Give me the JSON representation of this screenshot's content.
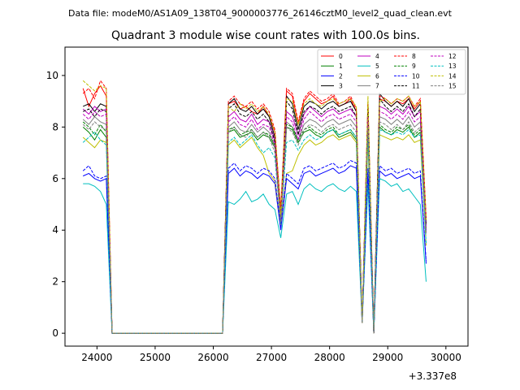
{
  "chart_data": {
    "type": "line",
    "suptitle": "Data file: modeM0/AS1A09_138T04_9000003776_26146cztM0_level2_quad_clean.evt",
    "title": "Quadrant 3 module wise count rates with 100.0s bins.",
    "xlabel": "",
    "ylabel": "",
    "offset_label": "+3.337e8",
    "xlim": [
      23450,
      30380
    ],
    "ylim": [
      -0.5,
      11.1
    ],
    "x_ticks": [
      24000,
      25000,
      26000,
      27000,
      28000,
      29000,
      30000
    ],
    "x_tick_labels": [
      "24000",
      "25000",
      "26000",
      "27000",
      "28000",
      "29000",
      "30000"
    ],
    "y_ticks": [
      0,
      2,
      4,
      6,
      8,
      10
    ],
    "y_tick_labels": [
      "0",
      "2",
      "4",
      "6",
      "8",
      "10"
    ],
    "x": [
      23760,
      23860,
      23960,
      24060,
      24160,
      24260,
      24360,
      24460,
      24560,
      24660,
      24760,
      24860,
      24960,
      25060,
      25160,
      25260,
      25360,
      25460,
      25560,
      25660,
      25760,
      25860,
      25960,
      26060,
      26160,
      26260,
      26360,
      26460,
      26560,
      26660,
      26760,
      26860,
      26960,
      27060,
      27160,
      27260,
      27360,
      27460,
      27560,
      27660,
      27760,
      27860,
      27960,
      28060,
      28160,
      28260,
      28360,
      28460,
      28560,
      28660,
      28760,
      28860,
      28960,
      29060,
      29160,
      29260,
      29360,
      29460,
      29560,
      29660,
      29760,
      29860,
      29960,
      30060
    ],
    "legend": {
      "location": "upper right",
      "columns": 4,
      "entries": [
        "0",
        "1",
        "2",
        "3",
        "4",
        "5",
        "6",
        "7",
        "8",
        "9",
        "10",
        "11",
        "12",
        "13",
        "14",
        "15"
      ]
    },
    "series": [
      {
        "name": "0",
        "color": "#ff0000",
        "dash": "solid",
        "high": [
          9.5,
          8.8,
          9.3,
          9.6,
          9.2
        ],
        "mid": [
          8.9,
          9.0,
          8.7,
          8.8,
          8.6,
          8.5,
          8.8,
          8.4,
          7.8,
          4.8,
          9.4,
          9.2,
          8.1,
          9.0,
          9.3,
          9.1,
          8.9,
          9.0,
          9.2,
          8.8,
          8.9,
          9.1,
          8.6
        ],
        "late": [
          8.9,
          9.1,
          9.0,
          8.8,
          9.0,
          8.9,
          9.1,
          8.7,
          9.0,
          4.4
        ]
      },
      {
        "name": "1",
        "color": "#008000",
        "dash": "solid",
        "high": [
          8.0,
          7.8,
          7.5,
          7.9,
          7.6
        ],
        "mid": [
          7.8,
          7.9,
          7.6,
          7.7,
          7.8,
          7.5,
          7.7,
          7.6,
          7.2,
          4.3,
          8.0,
          7.9,
          7.4,
          7.8,
          7.9,
          7.7,
          7.6,
          7.8,
          7.9,
          7.6,
          7.7,
          7.8,
          7.5
        ],
        "late": [
          7.9,
          8.0,
          7.8,
          7.7,
          7.9,
          7.8,
          8.0,
          7.6,
          7.8,
          3.9
        ]
      },
      {
        "name": "2",
        "color": "#0000ff",
        "dash": "solid",
        "high": [
          6.1,
          6.2,
          6.0,
          5.9,
          6.0
        ],
        "mid": [
          6.2,
          6.4,
          6.1,
          6.3,
          6.2,
          6.0,
          6.2,
          6.1,
          5.8,
          4.0,
          6.0,
          5.8,
          5.6,
          6.2,
          6.3,
          6.1,
          6.2,
          6.3,
          6.4,
          6.2,
          6.3,
          6.5,
          6.4
        ],
        "late": [
          6.2,
          6.3,
          6.1,
          6.2,
          6.0,
          6.1,
          6.2,
          6.0,
          6.1,
          2.7
        ]
      },
      {
        "name": "3",
        "color": "#000000",
        "dash": "solid",
        "high": [
          8.8,
          8.9,
          8.6,
          8.9,
          8.8
        ],
        "mid": [
          8.9,
          9.1,
          8.7,
          8.6,
          8.8,
          8.5,
          8.7,
          8.4,
          7.6,
          4.5,
          9.2,
          8.9,
          7.9,
          8.8,
          9.0,
          8.9,
          8.7,
          8.9,
          9.0,
          8.8,
          8.9,
          9.0,
          8.6
        ],
        "late": [
          8.9,
          9.3,
          9.0,
          8.8,
          9.0,
          8.8,
          9.1,
          8.6,
          8.9,
          4.3
        ]
      },
      {
        "name": "4",
        "color": "#bf00bf",
        "dash": "solid",
        "high": [
          8.7,
          8.5,
          8.8,
          8.6,
          8.7
        ],
        "mid": [
          8.4,
          8.6,
          8.3,
          8.2,
          8.5,
          8.1,
          8.3,
          8.2,
          7.5,
          4.4,
          8.6,
          8.4,
          7.7,
          8.5,
          8.8,
          8.6,
          8.4,
          8.6,
          8.7,
          8.5,
          8.6,
          8.7,
          8.4
        ],
        "late": [
          8.6,
          8.8,
          8.7,
          8.5,
          8.7,
          8.5,
          8.8,
          8.4,
          8.6,
          4.1
        ]
      },
      {
        "name": "5",
        "color": "#00bfbf",
        "dash": "solid",
        "high": [
          5.8,
          5.8,
          5.7,
          5.5,
          5.0
        ],
        "mid": [
          5.1,
          5.0,
          5.2,
          5.5,
          5.1,
          5.2,
          5.4,
          5.0,
          4.8,
          3.7,
          5.4,
          5.5,
          5.0,
          5.6,
          5.8,
          5.6,
          5.5,
          5.7,
          5.8,
          5.6,
          5.5,
          5.7,
          5.5
        ],
        "late": [
          5.8,
          6.0,
          5.9,
          5.7,
          5.8,
          5.5,
          5.6,
          5.3,
          5.0,
          2.0
        ]
      },
      {
        "name": "6",
        "color": "#bfbf00",
        "dash": "solid",
        "high": [
          7.6,
          7.4,
          7.2,
          7.5,
          7.4
        ],
        "mid": [
          7.3,
          7.5,
          7.2,
          7.4,
          7.6,
          7.2,
          6.9,
          6.2,
          5.9,
          4.2,
          6.2,
          6.3,
          6.9,
          7.3,
          7.5,
          7.3,
          7.4,
          7.6,
          7.7,
          7.5,
          7.6,
          7.7,
          7.4
        ],
        "late": [
          7.5,
          7.7,
          7.6,
          7.5,
          7.6,
          7.5,
          7.7,
          7.4,
          7.5,
          3.4
        ]
      },
      {
        "name": "7",
        "color": "#808080",
        "dash": "solid",
        "high": [
          8.3,
          8.1,
          8.4,
          8.2,
          8.1
        ],
        "mid": [
          8.0,
          8.2,
          7.9,
          7.8,
          8.1,
          7.8,
          8.0,
          7.8,
          7.2,
          4.3,
          8.2,
          8.0,
          7.5,
          8.1,
          8.3,
          8.2,
          8.0,
          8.2,
          8.3,
          8.1,
          8.2,
          8.3,
          8.0
        ],
        "late": [
          8.2,
          8.4,
          8.3,
          8.1,
          8.3,
          8.1,
          8.4,
          8.0,
          8.2,
          3.9
        ]
      },
      {
        "name": "8",
        "color": "#ff0000",
        "dash": "dashed",
        "high": [
          9.3,
          9.5,
          9.1,
          9.8,
          9.5
        ],
        "mid": [
          9.0,
          9.2,
          8.9,
          8.8,
          9.0,
          8.7,
          8.9,
          8.6,
          7.9,
          4.7,
          9.5,
          9.3,
          8.2,
          9.1,
          9.4,
          9.2,
          9.0,
          9.1,
          9.3,
          8.9,
          9.0,
          9.2,
          8.7
        ],
        "late": [
          9.0,
          9.2,
          9.1,
          8.9,
          9.1,
          9.0,
          9.2,
          8.8,
          9.1,
          4.5
        ]
      },
      {
        "name": "9",
        "color": "#008000",
        "dash": "dashed",
        "high": [
          8.2,
          8.0,
          7.7,
          8.1,
          7.8
        ],
        "mid": [
          7.9,
          8.0,
          7.7,
          7.8,
          7.9,
          7.6,
          7.8,
          7.7,
          7.3,
          4.3,
          8.1,
          8.0,
          7.5,
          7.9,
          8.0,
          7.8,
          7.7,
          7.9,
          8.0,
          7.7,
          7.8,
          7.9,
          7.6
        ],
        "late": [
          8.0,
          8.1,
          7.9,
          7.8,
          8.0,
          7.9,
          8.1,
          7.7,
          7.9,
          4.0
        ]
      },
      {
        "name": "10",
        "color": "#0000ff",
        "dash": "dashed",
        "high": [
          6.3,
          6.5,
          6.1,
          6.0,
          6.1
        ],
        "mid": [
          6.4,
          6.6,
          6.3,
          6.5,
          6.4,
          6.2,
          6.4,
          6.3,
          6.0,
          4.1,
          6.2,
          6.0,
          5.8,
          6.4,
          6.5,
          6.3,
          6.4,
          6.5,
          6.6,
          6.4,
          6.5,
          6.7,
          6.6
        ],
        "late": [
          6.4,
          6.5,
          6.3,
          6.4,
          6.2,
          6.3,
          6.4,
          6.2,
          6.3,
          2.8
        ]
      },
      {
        "name": "11",
        "color": "#000000",
        "dash": "dashed",
        "high": [
          8.6,
          8.7,
          8.4,
          8.7,
          8.6
        ],
        "mid": [
          8.7,
          8.9,
          8.5,
          8.4,
          8.6,
          8.3,
          8.5,
          8.2,
          7.4,
          4.4,
          9.0,
          8.7,
          7.7,
          8.6,
          8.8,
          8.7,
          8.5,
          8.7,
          8.8,
          8.6,
          8.7,
          8.8,
          8.4
        ],
        "late": [
          8.7,
          9.1,
          8.8,
          8.6,
          8.8,
          8.6,
          8.9,
          8.4,
          8.7,
          4.2
        ]
      },
      {
        "name": "12",
        "color": "#bf00bf",
        "dash": "dashed",
        "high": [
          8.5,
          8.3,
          8.6,
          8.4,
          8.5
        ],
        "mid": [
          8.2,
          8.4,
          8.1,
          8.0,
          8.3,
          7.9,
          8.1,
          8.0,
          7.3,
          4.3,
          8.4,
          8.2,
          7.5,
          8.3,
          8.6,
          8.4,
          8.2,
          8.4,
          8.5,
          8.3,
          8.4,
          8.5,
          8.2
        ],
        "late": [
          8.4,
          8.6,
          8.5,
          8.3,
          8.5,
          8.3,
          8.6,
          8.2,
          8.4,
          4.0
        ]
      },
      {
        "name": "13",
        "color": "#00bfbf",
        "dash": "dashed",
        "high": [
          7.4,
          7.6,
          7.8,
          7.5,
          7.3
        ],
        "mid": [
          7.4,
          7.6,
          7.3,
          7.5,
          7.7,
          7.3,
          7.0,
          7.2,
          6.8,
          4.2,
          7.4,
          7.5,
          7.1,
          7.5,
          7.7,
          7.5,
          7.6,
          7.8,
          7.9,
          7.7,
          7.8,
          7.9,
          7.6
        ],
        "late": [
          7.7,
          7.9,
          7.8,
          7.7,
          7.8,
          7.7,
          7.9,
          7.6,
          7.7,
          3.5
        ]
      },
      {
        "name": "14",
        "color": "#bfbf00",
        "dash": "dashed",
        "high": [
          9.8,
          9.6,
          9.4,
          9.6,
          9.5
        ],
        "mid": [
          8.8,
          8.6,
          8.9,
          8.7,
          8.9,
          8.6,
          8.8,
          8.5,
          7.8,
          4.6,
          9.1,
          9.0,
          8.1,
          8.9,
          9.1,
          8.9,
          8.8,
          9.0,
          9.1,
          8.9,
          9.0,
          9.1,
          8.8
        ],
        "late": [
          9.2,
          9.0,
          9.1,
          8.9,
          9.1,
          9.0,
          9.2,
          8.8,
          9.0,
          4.4
        ]
      },
      {
        "name": "15",
        "color": "#808080",
        "dash": "dashed",
        "high": [
          8.1,
          7.9,
          8.2,
          8.0,
          7.9
        ],
        "mid": [
          7.8,
          8.0,
          7.7,
          7.6,
          7.9,
          7.6,
          7.8,
          7.6,
          7.0,
          4.2,
          8.0,
          7.8,
          7.3,
          7.9,
          8.1,
          8.0,
          7.8,
          8.0,
          8.1,
          7.9,
          8.0,
          8.1,
          7.8
        ],
        "late": [
          8.0,
          8.2,
          8.1,
          7.9,
          8.1,
          7.9,
          8.2,
          7.8,
          8.0,
          3.8
        ]
      }
    ]
  }
}
